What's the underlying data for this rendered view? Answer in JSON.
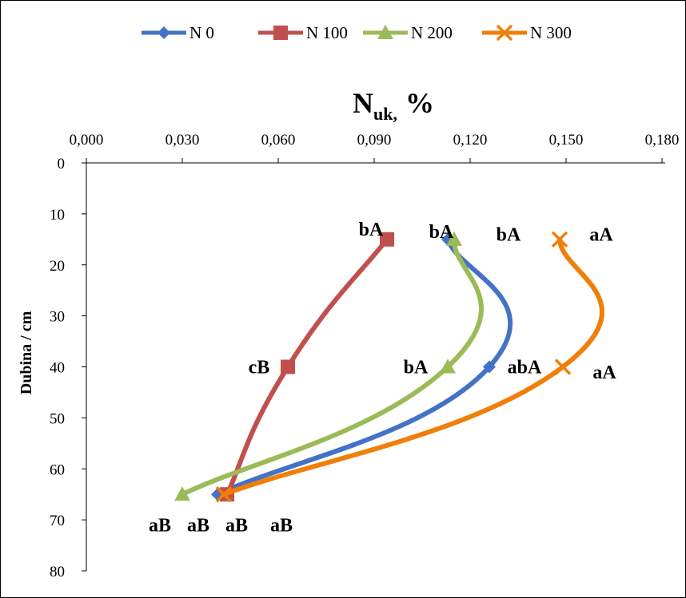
{
  "chart_data": {
    "type": "line",
    "orientation": "depth-profile (x = value, y = depth, y increasing downward)",
    "x_axis": {
      "label_main": "N",
      "label_sub": "uk,",
      "label_unit": "%",
      "position": "top",
      "range": [
        0,
        0.18
      ],
      "ticks": [
        0,
        0.03,
        0.06,
        0.09,
        0.12,
        0.15,
        0.18
      ],
      "tick_labels": [
        "0,000",
        "0,030",
        "0,060",
        "0,090",
        "0,120",
        "0,150",
        "0,180"
      ]
    },
    "y_axis": {
      "label": "Dubina / cm",
      "range": [
        0,
        80
      ],
      "reversed": true,
      "ticks": [
        0,
        10,
        20,
        30,
        40,
        50,
        60,
        70,
        80
      ],
      "tick_labels": [
        "0",
        "10",
        "20",
        "30",
        "40",
        "50",
        "60",
        "70",
        "80"
      ]
    },
    "grid": false,
    "legend": {
      "placement": "top"
    },
    "series": [
      {
        "name": "N 0",
        "color": "#4472C4",
        "marker": "diamond",
        "points": [
          {
            "x": 0.113,
            "y": 15
          },
          {
            "x": 0.126,
            "y": 40
          },
          {
            "x": 0.041,
            "y": 65
          }
        ]
      },
      {
        "name": "N 100",
        "color": "#C0504D",
        "marker": "square",
        "points": [
          {
            "x": 0.094,
            "y": 15
          },
          {
            "x": 0.063,
            "y": 40
          },
          {
            "x": 0.044,
            "y": 65
          }
        ]
      },
      {
        "name": "N 200",
        "color": "#9BBB59",
        "marker": "triangle",
        "points": [
          {
            "x": 0.115,
            "y": 15
          },
          {
            "x": 0.113,
            "y": 40
          },
          {
            "x": 0.03,
            "y": 65
          }
        ]
      },
      {
        "name": "N 300",
        "color": "#F07F09",
        "marker": "x",
        "points": [
          {
            "x": 0.148,
            "y": 15
          },
          {
            "x": 0.149,
            "y": 40
          },
          {
            "x": 0.043,
            "y": 65
          }
        ]
      }
    ],
    "annotations": [
      {
        "text": "bA",
        "x": 0.089,
        "y": 13
      },
      {
        "text": "bA",
        "x": 0.111,
        "y": 13.5
      },
      {
        "text": "bA",
        "x": 0.132,
        "y": 14
      },
      {
        "text": "aA",
        "x": 0.161,
        "y": 14
      },
      {
        "text": "cB",
        "x": 0.054,
        "y": 40
      },
      {
        "text": "bA",
        "x": 0.103,
        "y": 40
      },
      {
        "text": "abA",
        "x": 0.137,
        "y": 40
      },
      {
        "text": "aA",
        "x": 0.162,
        "y": 41
      },
      {
        "text": "aB",
        "x": 0.023,
        "y": 71
      },
      {
        "text": "aB",
        "x": 0.035,
        "y": 71
      },
      {
        "text": "aB",
        "x": 0.047,
        "y": 71
      },
      {
        "text": "aB",
        "x": 0.061,
        "y": 71
      }
    ]
  }
}
